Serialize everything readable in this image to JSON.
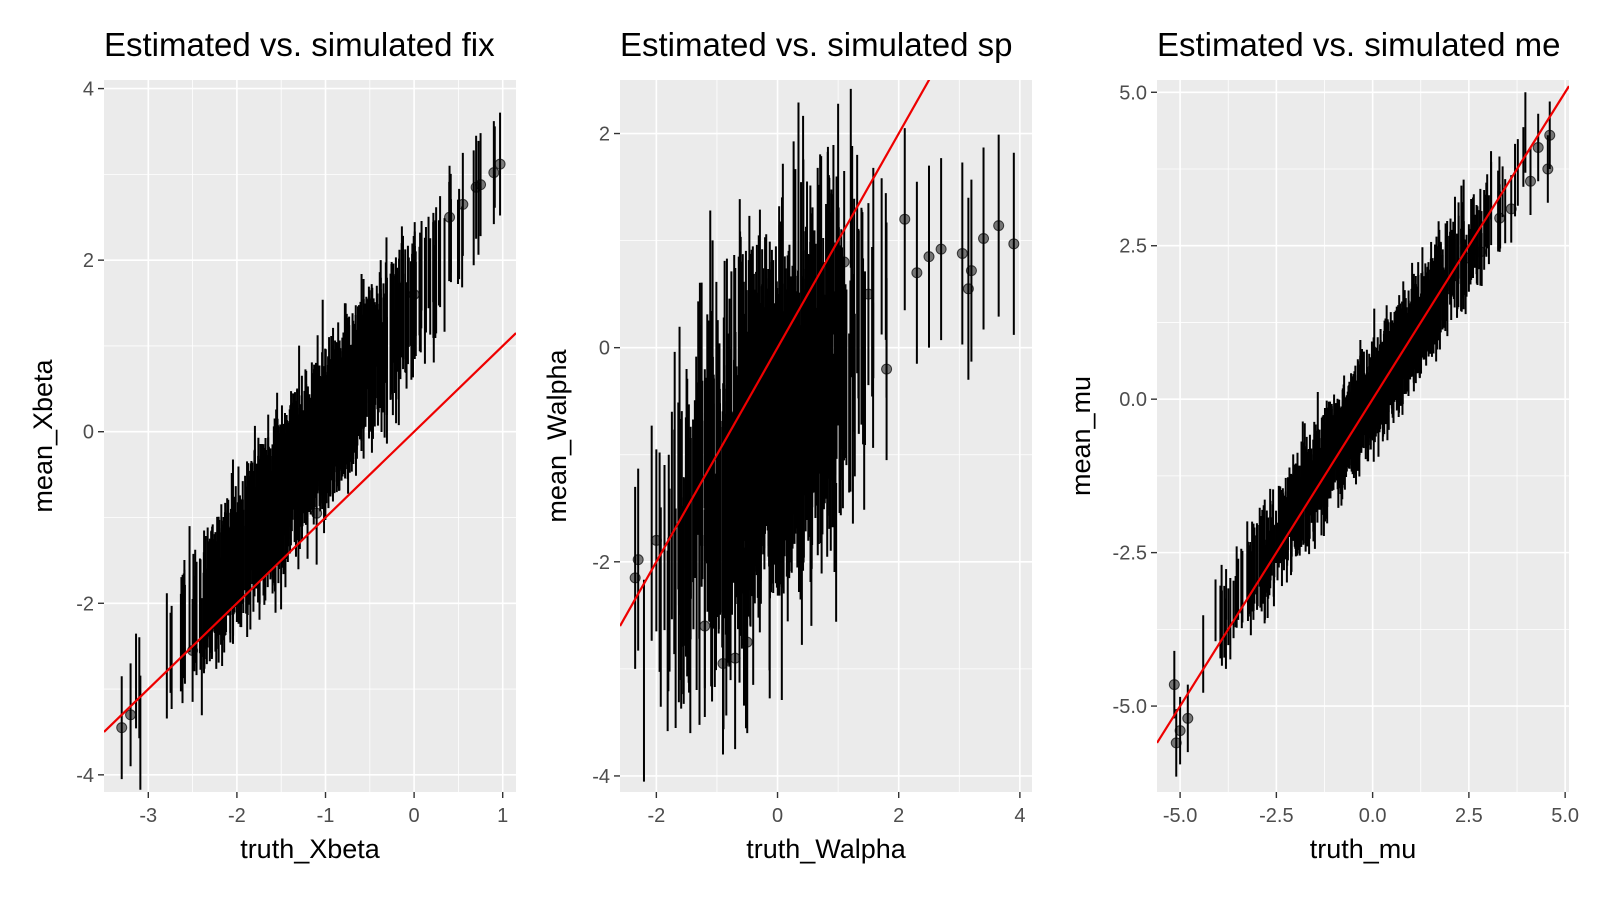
{
  "colors": {
    "panel_bg": "#ebebeb",
    "grid": "#ffffff",
    "points": "#000000",
    "reference_line": "#ee0000"
  },
  "chart_data": [
    {
      "type": "scatter",
      "title": "Estimated vs. simulated fix",
      "xlabel": "truth_Xbeta",
      "ylabel": "mean_Xbeta",
      "xlim": [
        -3.5,
        1.15
      ],
      "ylim": [
        -4.2,
        4.1
      ],
      "xticks": [
        -3,
        -2,
        -1,
        0,
        1
      ],
      "xtick_labels": [
        "-3",
        "-2",
        "-1",
        "0",
        "1"
      ],
      "yticks": [
        -4,
        -2,
        0,
        2,
        4
      ],
      "ytick_labels": [
        "-4",
        "-2",
        "0",
        "2",
        "4"
      ],
      "grid": true,
      "reference_line": {
        "intercept": 0,
        "slope": 1
      },
      "sample_points": [
        {
          "x": -3.3,
          "y": -3.45
        },
        {
          "x": -3.2,
          "y": -3.3
        },
        {
          "x": -2.5,
          "y": -2.55
        },
        {
          "x": -1.6,
          "y": -1.1
        },
        {
          "x": -1.25,
          "y": -0.35
        },
        {
          "x": -1.1,
          "y": -0.95
        },
        {
          "x": -0.75,
          "y": 0.05
        },
        {
          "x": -1.0,
          "y": 0.15
        },
        {
          "x": -0.5,
          "y": 0.6
        },
        {
          "x": 0.0,
          "y": 1.6
        },
        {
          "x": 0.4,
          "y": 2.5
        },
        {
          "x": 0.55,
          "y": 2.65
        },
        {
          "x": 0.7,
          "y": 2.85
        },
        {
          "x": 0.75,
          "y": 2.88
        },
        {
          "x": 0.9,
          "y": 3.02
        },
        {
          "x": 0.97,
          "y": 3.12
        }
      ],
      "dense_band": {
        "x_min": -3.35,
        "x_max": 0.97,
        "fit_intercept": 1.55,
        "fit_slope": 1.5,
        "spread": 0.2,
        "half_interval": 0.6
      }
    },
    {
      "type": "scatter",
      "title": "Estimated vs. simulated sp",
      "xlabel": "truth_Walpha",
      "ylabel": "mean_Walpha",
      "xlim": [
        -2.6,
        4.2
      ],
      "ylim": [
        -4.15,
        2.5
      ],
      "xticks": [
        -2,
        0,
        2,
        4
      ],
      "xtick_labels": [
        "-2",
        "0",
        "2",
        "4"
      ],
      "yticks": [
        -4,
        -2,
        0,
        2
      ],
      "ytick_labels": [
        "-4",
        "-2",
        "0",
        "2"
      ],
      "grid": true,
      "reference_line": {
        "intercept": 0,
        "slope": 1
      },
      "sample_points": [
        {
          "x": -2.35,
          "y": -2.15
        },
        {
          "x": -2.3,
          "y": -1.98
        },
        {
          "x": -2.0,
          "y": -1.8
        },
        {
          "x": -1.2,
          "y": -2.6
        },
        {
          "x": -0.9,
          "y": -2.95
        },
        {
          "x": -0.7,
          "y": -2.9
        },
        {
          "x": -0.5,
          "y": -2.75
        },
        {
          "x": 1.1,
          "y": 0.8
        },
        {
          "x": 1.5,
          "y": 0.5
        },
        {
          "x": 1.8,
          "y": -0.2
        },
        {
          "x": 2.1,
          "y": 1.2
        },
        {
          "x": 2.3,
          "y": 0.7
        },
        {
          "x": 2.5,
          "y": 0.85
        },
        {
          "x": 2.7,
          "y": 0.92
        },
        {
          "x": 3.05,
          "y": 0.88
        },
        {
          "x": 3.15,
          "y": 0.55
        },
        {
          "x": 3.2,
          "y": 0.72
        },
        {
          "x": 3.4,
          "y": 1.02
        },
        {
          "x": 3.65,
          "y": 1.14
        },
        {
          "x": 3.9,
          "y": 0.97
        }
      ],
      "dense_band": {
        "x_min": -2.35,
        "x_max": 2.2,
        "fit_intercept": -0.7,
        "fit_slope": 0.65,
        "spread": 0.55,
        "half_interval": 0.85
      }
    },
    {
      "type": "scatter",
      "title": "Estimated vs. simulated me",
      "xlabel": "truth_mu",
      "ylabel": "mean_mu",
      "xlim": [
        -5.6,
        5.1
      ],
      "ylim": [
        -6.4,
        5.2
      ],
      "xticks": [
        -5,
        -2.5,
        0,
        2.5,
        5
      ],
      "xtick_labels": [
        "-5.0",
        "-2.5",
        "0.0",
        "2.5",
        "5.0"
      ],
      "yticks": [
        -5,
        -2.5,
        0,
        2.5,
        5
      ],
      "ytick_labels": [
        "-5.0",
        "-2.5",
        "0.0",
        "2.5",
        "5.0"
      ],
      "grid": true,
      "reference_line": {
        "intercept": 0,
        "slope": 1
      },
      "sample_points": [
        {
          "x": -5.15,
          "y": -4.65
        },
        {
          "x": -5.1,
          "y": -5.6
        },
        {
          "x": -5.0,
          "y": -5.4
        },
        {
          "x": -4.8,
          "y": -5.2
        },
        {
          "x": 2.5,
          "y": 2.3
        },
        {
          "x": 2.8,
          "y": 2.4
        },
        {
          "x": 3.3,
          "y": 2.95
        },
        {
          "x": 3.6,
          "y": 3.1
        },
        {
          "x": 4.1,
          "y": 3.55
        },
        {
          "x": 4.3,
          "y": 4.1
        },
        {
          "x": 4.55,
          "y": 3.75
        },
        {
          "x": 4.6,
          "y": 4.3
        }
      ],
      "dense_band": {
        "x_min": -5.2,
        "x_max": 4.6,
        "fit_intercept": 0.1,
        "fit_slope": 0.95,
        "spread": 0.22,
        "half_interval": 0.55
      }
    }
  ]
}
